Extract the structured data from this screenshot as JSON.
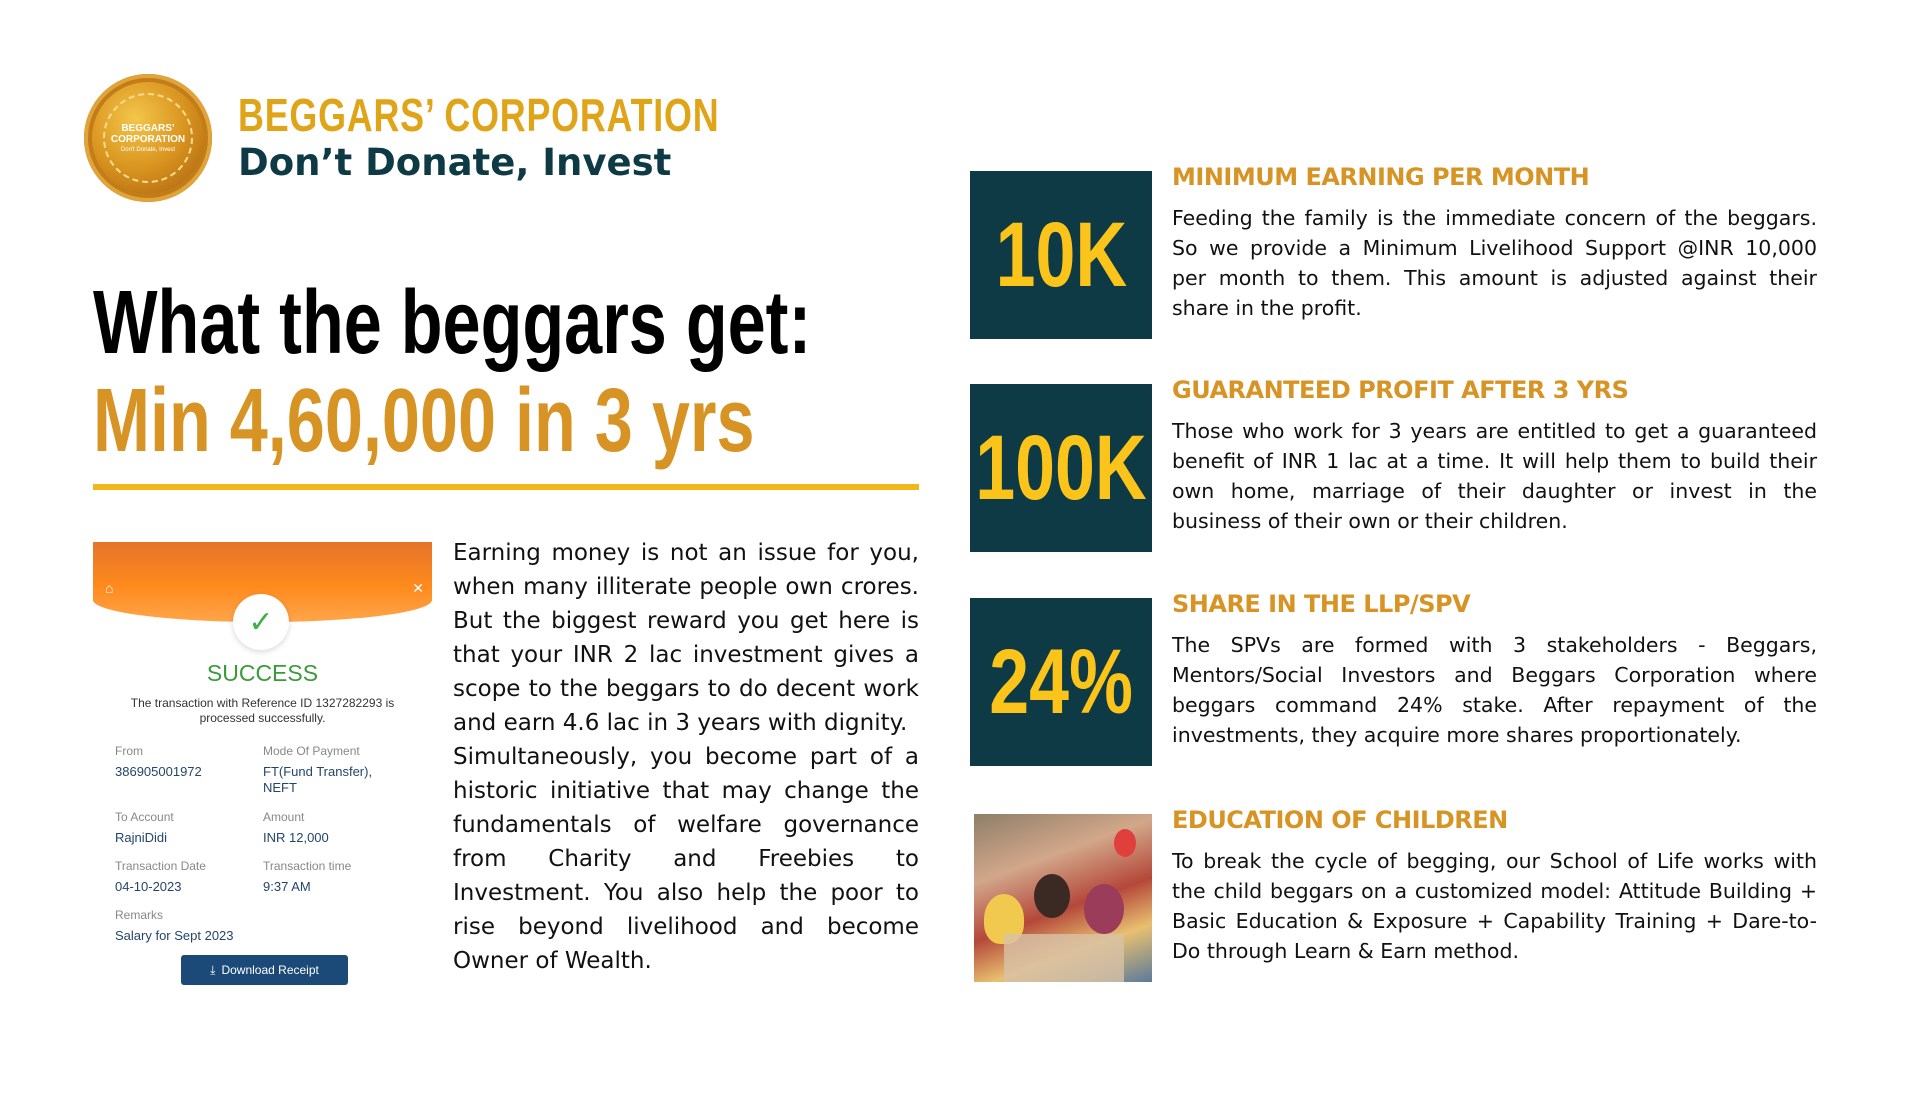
{
  "brand": {
    "name": "BEGGARS’ CORPORATION",
    "tagline": "Don’t Donate, Invest",
    "logo_text": "BEGGARS’ CORPORATION",
    "logo_subtext": "Don't Donate, Invest",
    "accent_color": "#e0a418",
    "dark_color": "#0e3a46"
  },
  "headline": {
    "line1": "What the beggars get:",
    "line2": "Min 4,60,000 in 3 yrs"
  },
  "receipt": {
    "status": "SUCCESS",
    "message": "The transaction with Reference ID 1327282293 is processed successfully.",
    "from_label": "From",
    "from_value": "386905001972",
    "mode_label": "Mode Of Payment",
    "mode_value": "FT(Fund Transfer), NEFT",
    "to_label": "To Account",
    "to_value": "RajniDidi",
    "amount_label": "Amount",
    "amount_value": "INR 12,000",
    "date_label": "Transaction Date",
    "date_value": "04-10-2023",
    "time_label": "Transaction time",
    "time_value": "9:37 AM",
    "remarks_label": "Remarks",
    "remarks_value": "Salary for Sept 2023",
    "download_label": "Download Receipt"
  },
  "body": {
    "paragraph1": "Earning money is not an issue for you, when many illiterate people own crores. But the biggest reward you get here is that your INR 2 lac investment gives a scope to the beggars to do decent work and earn 4.6 lac in 3 years with dignity.",
    "paragraph2": "Simultaneously, you become part of a historic initiative that may change the fundamentals of welfare governance from Charity and Freebies to Investment. You also help the poor to rise beyond livelihood and become Owner of Wealth."
  },
  "features": [
    {
      "badge": "10K",
      "title": "MINIMUM EARNING PER MONTH",
      "description": "Feeding the family is the immediate concern of the beggars. So we provide a Minimum Livelihood Support @INR 10,000 per month to them. This amount is adjusted against their share in the profit."
    },
    {
      "badge": "100K",
      "title": "GUARANTEED PROFIT AFTER 3 YRS",
      "description": "Those who work for 3 years are entitled to get a guaranteed benefit of INR 1 lac at a time. It will help them to build their own home, marriage of their daughter or invest in the business of their own or their children."
    },
    {
      "badge": "24%",
      "title": "SHARE IN THE LLP/SPV",
      "description": "The SPVs are formed with 3 stakeholders - Beggars, Mentors/Social Investors and Beggars Corporation where beggars command 24% stake. After repayment of the investments, they acquire more shares proportionately."
    },
    {
      "badge": "",
      "title": "EDUCATION OF CHILDREN",
      "description": "To break the cycle of begging, our School of Life works with the child beggars on a customized model: Attitude Building + Basic Education & Exposure + Capability Training + Dare-to-Do through Learn & Earn method."
    }
  ]
}
